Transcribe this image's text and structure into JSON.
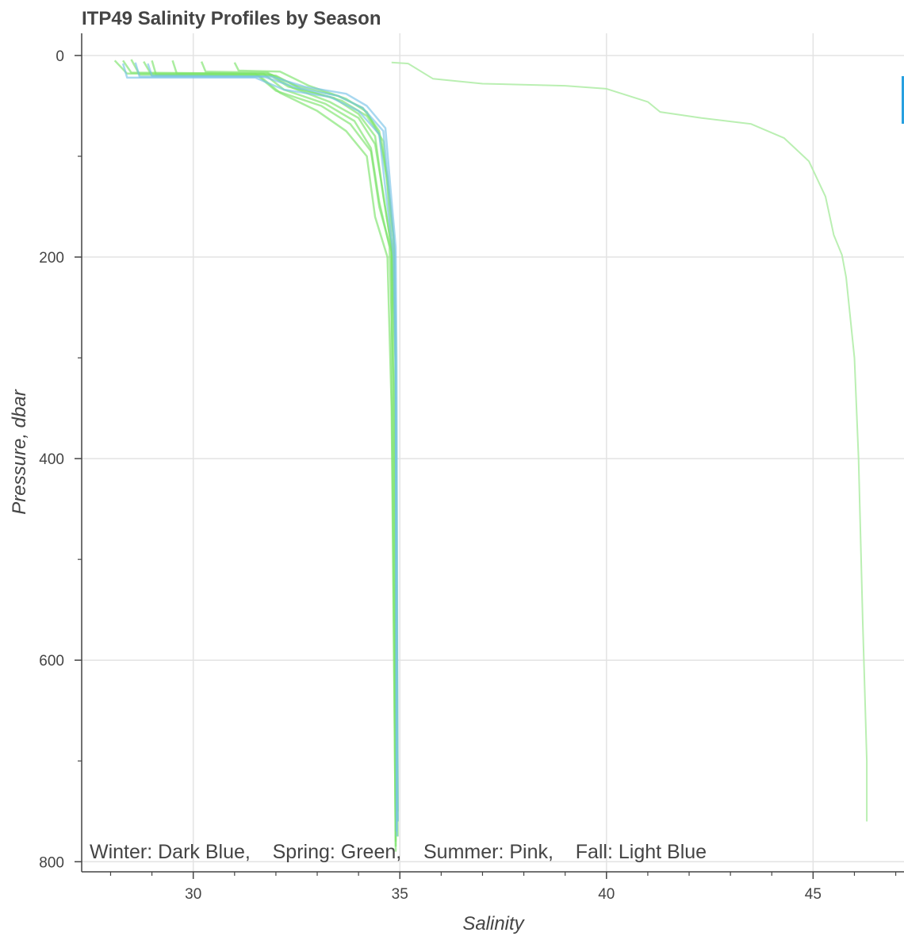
{
  "chart_data": {
    "type": "line",
    "title": "ITP49 Salinity Profiles by Season",
    "xlabel": "Salinity",
    "ylabel": "Pressure, dbar",
    "xlim": [
      27.3,
      47.2
    ],
    "ylim": [
      -22,
      810
    ],
    "y_inverted": true,
    "grid": true,
    "x_major_ticks": [
      30,
      35,
      40,
      45
    ],
    "x_minor_ticks": [
      28,
      29,
      31,
      32,
      33,
      34,
      36,
      37,
      38,
      39,
      41,
      42,
      43,
      44,
      46,
      47
    ],
    "y_major_ticks": [
      0,
      200,
      400,
      600,
      800
    ],
    "y_minor_ticks": [
      100,
      300,
      500,
      700
    ],
    "tick_labels_x": [
      "30",
      "35",
      "40",
      "45"
    ],
    "tick_labels_y": [
      "0",
      "200",
      "400",
      "600",
      "800"
    ],
    "annotation": "Winter: Dark Blue,    Spring: Green,    Summer: Pink,    Fall: Light Blue",
    "colors": {
      "spring": "#7de36b",
      "fall": "#79c3e8",
      "outlier": "#b3edaa"
    },
    "series": [
      {
        "group": "spring",
        "x": [
          28.1,
          28.4,
          31.8,
          32.3,
          33.4,
          34.0,
          34.4,
          34.6,
          34.8,
          34.8,
          34.9
        ],
        "y": [
          5,
          18,
          18,
          31,
          42,
          58,
          80,
          140,
          190,
          300,
          785
        ]
      },
      {
        "group": "spring",
        "x": [
          28.3,
          28.5,
          31.5,
          32.0,
          33.1,
          33.8,
          34.3,
          34.5,
          34.8,
          34.85,
          34.9
        ],
        "y": [
          5,
          17,
          18,
          35,
          50,
          68,
          95,
          150,
          195,
          320,
          770
        ]
      },
      {
        "group": "spring",
        "x": [
          28.5,
          28.7,
          31.9,
          32.5,
          33.5,
          34.1,
          34.5,
          34.7,
          34.85,
          34.9,
          34.95
        ],
        "y": [
          4,
          19,
          19,
          30,
          40,
          52,
          75,
          120,
          180,
          290,
          760
        ]
      },
      {
        "group": "spring",
        "x": [
          28.8,
          29.0,
          31.6,
          32.1,
          33.0,
          33.7,
          34.2,
          34.4,
          34.7,
          34.8,
          34.9
        ],
        "y": [
          6,
          20,
          20,
          37,
          55,
          75,
          100,
          160,
          200,
          350,
          780
        ]
      },
      {
        "group": "spring",
        "x": [
          29.0,
          29.1,
          32.0,
          32.6,
          33.6,
          34.2,
          34.6,
          34.7,
          34.8,
          34.9,
          34.9
        ],
        "y": [
          5,
          19,
          20,
          33,
          45,
          60,
          85,
          130,
          185,
          310,
          790
        ]
      },
      {
        "group": "spring",
        "x": [
          29.5,
          29.6,
          31.7,
          32.2,
          33.2,
          33.9,
          34.3,
          34.5,
          34.75,
          34.85,
          34.95
        ],
        "y": [
          5,
          18,
          18,
          34,
          48,
          65,
          92,
          145,
          190,
          330,
          775
        ]
      },
      {
        "group": "spring",
        "x": [
          30.2,
          30.3,
          31.8,
          32.4,
          33.3,
          34.0,
          34.4,
          34.6,
          34.8,
          34.9,
          34.9
        ],
        "y": [
          6,
          16,
          17,
          32,
          46,
          62,
          88,
          138,
          192,
          305,
          765
        ]
      },
      {
        "group": "spring",
        "x": [
          31.0,
          31.1,
          32.1,
          32.8,
          33.7,
          34.2,
          34.5,
          34.7,
          34.85,
          34.9,
          34.95
        ],
        "y": [
          7,
          15,
          16,
          30,
          43,
          56,
          78,
          125,
          182,
          280,
          750
        ]
      },
      {
        "group": "fall",
        "x": [
          28.3,
          28.4,
          31.5,
          32.2,
          33.3,
          34.0,
          34.5,
          34.7,
          34.85,
          34.9,
          34.92
        ],
        "y": [
          8,
          22,
          22,
          34,
          41,
          55,
          78,
          150,
          200,
          320,
          770
        ]
      },
      {
        "group": "fall",
        "x": [
          28.6,
          28.7,
          31.7,
          32.5,
          33.5,
          34.1,
          34.6,
          34.75,
          34.88,
          34.9,
          34.93
        ],
        "y": [
          7,
          21,
          21,
          32,
          40,
          52,
          75,
          140,
          195,
          330,
          775
        ]
      },
      {
        "group": "fall",
        "x": [
          28.9,
          29.0,
          31.9,
          32.7,
          33.7,
          34.2,
          34.65,
          34.78,
          34.9,
          34.92,
          34.95
        ],
        "y": [
          8,
          20,
          21,
          31,
          38,
          50,
          72,
          135,
          190,
          300,
          760
        ]
      },
      {
        "group": "outlier",
        "x": [
          34.8,
          35.2,
          35.8,
          37.0,
          39.0,
          40.0,
          41.0,
          41.3,
          42.3,
          43.5,
          44.3,
          44.9,
          45.3,
          45.5,
          45.7,
          45.8,
          46.0,
          46.1,
          46.2,
          46.3,
          46.3
        ],
        "y": [
          7,
          8,
          23,
          28,
          30,
          33,
          46,
          56,
          62,
          68,
          82,
          105,
          140,
          178,
          198,
          220,
          300,
          400,
          560,
          700,
          760
        ]
      }
    ]
  }
}
